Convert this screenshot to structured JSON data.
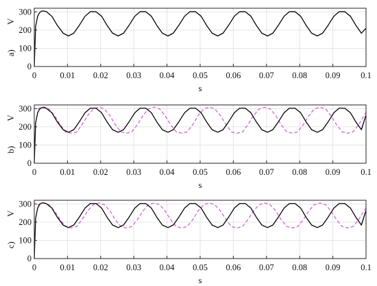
{
  "chart_data": [
    {
      "type": "line",
      "panel_label": "a)",
      "xlabel": "s",
      "ylabel": "V",
      "xlim": [
        0,
        0.1
      ],
      "ylim": [
        0,
        320
      ],
      "x_ticks": [
        "0",
        "0.01",
        "0.02",
        "0.03",
        "0.04",
        "0.05",
        "0.06",
        "0.07",
        "0.08",
        "0.09",
        "0.1"
      ],
      "y_ticks": [
        "0",
        "100",
        "200",
        "300"
      ],
      "grid": true,
      "series": [
        {
          "color": "#000000",
          "style": "solid",
          "x": [
            0,
            0.0004,
            0.001,
            0.0016,
            0.0022,
            0.0027,
            0.0036,
            0.0053,
            0.0069,
            0.0087,
            0.0103,
            0.0119,
            0.0136,
            0.0153,
            0.0169,
            0.0186,
            0.0203,
            0.0219,
            0.0236,
            0.0253,
            0.0269,
            0.0286,
            0.0303,
            0.0319,
            0.0336,
            0.0353,
            0.0369,
            0.0386,
            0.0403,
            0.0419,
            0.0436,
            0.0453,
            0.0469,
            0.0486,
            0.0503,
            0.0519,
            0.0536,
            0.0553,
            0.0569,
            0.0586,
            0.0603,
            0.0619,
            0.0636,
            0.0653,
            0.0669,
            0.0686,
            0.0703,
            0.0719,
            0.0736,
            0.0753,
            0.0769,
            0.0786,
            0.0803,
            0.0819,
            0.0836,
            0.0853,
            0.0869,
            0.0886,
            0.0903,
            0.0919,
            0.0936,
            0.0953,
            0.0969,
            0.0986,
            0.1
          ],
          "y": [
            0,
            220,
            275,
            296,
            304,
            305,
            302,
            276,
            227,
            183,
            168,
            183,
            227,
            276,
            301,
            301,
            276,
            227,
            183,
            168,
            183,
            227,
            276,
            301,
            301,
            276,
            227,
            183,
            168,
            183,
            227,
            276,
            301,
            301,
            276,
            227,
            183,
            168,
            183,
            227,
            276,
            301,
            301,
            276,
            227,
            183,
            168,
            183,
            227,
            276,
            301,
            301,
            276,
            227,
            183,
            168,
            183,
            227,
            276,
            301,
            301,
            276,
            227,
            183,
            210
          ]
        }
      ]
    },
    {
      "type": "line",
      "panel_label": "b)",
      "xlabel": "s",
      "ylabel": "V",
      "xlim": [
        0,
        0.1
      ],
      "ylim": [
        0,
        320
      ],
      "x_ticks": [
        "0",
        "0.01",
        "0.02",
        "0.03",
        "0.04",
        "0.05",
        "0.06",
        "0.07",
        "0.08",
        "0.09",
        "0.1"
      ],
      "y_ticks": [
        "0",
        "100",
        "200",
        "300"
      ],
      "grid": true,
      "series": [
        {
          "color": "#000000",
          "style": "solid",
          "x": [
            0,
            0.0004,
            0.001,
            0.0016,
            0.0022,
            0.0027,
            0.0036,
            0.0053,
            0.0069,
            0.0087,
            0.0103,
            0.0119,
            0.0136,
            0.0153,
            0.0169,
            0.0186,
            0.0203,
            0.0219,
            0.0236,
            0.0253,
            0.0269,
            0.0286,
            0.0303,
            0.0319,
            0.0336,
            0.0353,
            0.0369,
            0.0386,
            0.0403,
            0.0419,
            0.0436,
            0.0453,
            0.0469,
            0.0486,
            0.0503,
            0.0519,
            0.0536,
            0.0553,
            0.0569,
            0.0586,
            0.0603,
            0.0619,
            0.0636,
            0.0653,
            0.0669,
            0.0686,
            0.0703,
            0.0719,
            0.0736,
            0.0753,
            0.0769,
            0.0786,
            0.0803,
            0.0819,
            0.0836,
            0.0853,
            0.0869,
            0.0886,
            0.0903,
            0.0919,
            0.0936,
            0.0953,
            0.0969,
            0.0986,
            0.1
          ],
          "y": [
            0,
            220,
            276,
            297,
            305,
            306,
            302,
            277,
            228,
            184,
            170,
            184,
            228,
            277,
            302,
            302,
            277,
            228,
            184,
            170,
            184,
            228,
            277,
            302,
            302,
            277,
            228,
            184,
            170,
            184,
            228,
            277,
            302,
            302,
            277,
            228,
            184,
            170,
            184,
            228,
            277,
            302,
            302,
            277,
            228,
            184,
            170,
            184,
            228,
            277,
            302,
            302,
            277,
            228,
            184,
            170,
            184,
            228,
            277,
            302,
            302,
            277,
            228,
            184,
            265
          ]
        },
        {
          "color": "#d860d8",
          "style": "dashed",
          "x": [
            0.001,
            0.0016,
            0.0022,
            0.0029,
            0.0044,
            0.0061,
            0.0078,
            0.0094,
            0.0111,
            0.0128,
            0.0144,
            0.0161,
            0.0178,
            0.0194,
            0.0211,
            0.0228,
            0.0244,
            0.0261,
            0.0278,
            0.0294,
            0.0311,
            0.0328,
            0.0344,
            0.0361,
            0.0378,
            0.0394,
            0.0411,
            0.0428,
            0.0444,
            0.0461,
            0.0478,
            0.0494,
            0.0511,
            0.0528,
            0.0544,
            0.0561,
            0.0578,
            0.0594,
            0.0611,
            0.0628,
            0.0644,
            0.0661,
            0.0678,
            0.0694,
            0.0711,
            0.0728,
            0.0744,
            0.0761,
            0.0778,
            0.0794,
            0.0811,
            0.0828,
            0.0844,
            0.0861,
            0.0878,
            0.0894,
            0.0911,
            0.0928,
            0.0944,
            0.0961,
            0.0978,
            0.0994,
            0.1
          ],
          "y": [
            296,
            304,
            308,
            309,
            298,
            262,
            212,
            172,
            165,
            172,
            212,
            262,
            298,
            308,
            298,
            262,
            212,
            172,
            165,
            172,
            212,
            262,
            298,
            308,
            298,
            262,
            212,
            172,
            165,
            172,
            212,
            262,
            298,
            308,
            298,
            262,
            212,
            172,
            165,
            172,
            212,
            262,
            298,
            308,
            298,
            262,
            212,
            172,
            165,
            172,
            212,
            262,
            298,
            308,
            298,
            262,
            212,
            172,
            165,
            172,
            212,
            262,
            280
          ]
        }
      ]
    },
    {
      "type": "line",
      "panel_label": "c)",
      "xlabel": "s",
      "ylabel": "V",
      "xlim": [
        0,
        0.1
      ],
      "ylim": [
        0,
        320
      ],
      "x_ticks": [
        "0",
        "0.01",
        "0.02",
        "0.03",
        "0.04",
        "0.05",
        "0.06",
        "0.07",
        "0.08",
        "0.09",
        "0.1"
      ],
      "y_ticks": [
        "0",
        "100",
        "200",
        "300"
      ],
      "grid": true,
      "series": [
        {
          "color": "#000000",
          "style": "solid",
          "x": [
            0,
            0.0004,
            0.001,
            0.0016,
            0.0022,
            0.0027,
            0.0036,
            0.0053,
            0.0069,
            0.0087,
            0.0103,
            0.0119,
            0.0136,
            0.0153,
            0.0169,
            0.0186,
            0.0203,
            0.0219,
            0.0236,
            0.0253,
            0.0269,
            0.0286,
            0.0303,
            0.0319,
            0.0336,
            0.0353,
            0.0369,
            0.0386,
            0.0403,
            0.0419,
            0.0436,
            0.0453,
            0.0469,
            0.0486,
            0.0503,
            0.0519,
            0.0536,
            0.0553,
            0.0569,
            0.0586,
            0.0603,
            0.0619,
            0.0636,
            0.0653,
            0.0669,
            0.0686,
            0.0703,
            0.0719,
            0.0736,
            0.0753,
            0.0769,
            0.0786,
            0.0803,
            0.0819,
            0.0836,
            0.0853,
            0.0869,
            0.0886,
            0.0903,
            0.0919,
            0.0936,
            0.0953,
            0.0969,
            0.0986,
            0.1
          ],
          "y": [
            0,
            220,
            276,
            297,
            305,
            306,
            302,
            277,
            228,
            184,
            170,
            184,
            228,
            277,
            302,
            302,
            277,
            228,
            184,
            170,
            184,
            228,
            277,
            302,
            302,
            277,
            228,
            184,
            170,
            184,
            228,
            277,
            302,
            302,
            277,
            228,
            184,
            170,
            184,
            228,
            277,
            302,
            302,
            277,
            228,
            184,
            170,
            184,
            228,
            277,
            302,
            302,
            277,
            228,
            184,
            170,
            184,
            228,
            277,
            302,
            302,
            277,
            228,
            184,
            265
          ]
        },
        {
          "color": "#d860d8",
          "style": "dashed",
          "x": [
            0.001,
            0.0016,
            0.0022,
            0.0029,
            0.0044,
            0.0061,
            0.0078,
            0.0094,
            0.0111,
            0.0128,
            0.0144,
            0.0161,
            0.0178,
            0.0194,
            0.0211,
            0.0228,
            0.0244,
            0.0261,
            0.0278,
            0.0294,
            0.0311,
            0.0328,
            0.0344,
            0.0361,
            0.0378,
            0.0394,
            0.0411,
            0.0428,
            0.0444,
            0.0461,
            0.0478,
            0.0494,
            0.0511,
            0.0528,
            0.0544,
            0.0561,
            0.0578,
            0.0594,
            0.0611,
            0.0628,
            0.0644,
            0.0661,
            0.0678,
            0.0694,
            0.0711,
            0.0728,
            0.0744,
            0.0761,
            0.0778,
            0.0794,
            0.0811,
            0.0828,
            0.0844,
            0.0861,
            0.0878,
            0.0894,
            0.0911,
            0.0928,
            0.0944,
            0.0961,
            0.0978,
            0.0994,
            0.1
          ],
          "y": [
            292,
            300,
            304,
            305,
            296,
            262,
            214,
            176,
            168,
            176,
            214,
            262,
            296,
            305,
            296,
            262,
            214,
            176,
            168,
            176,
            214,
            262,
            296,
            305,
            296,
            262,
            214,
            176,
            168,
            176,
            214,
            262,
            296,
            305,
            296,
            262,
            214,
            176,
            168,
            176,
            214,
            262,
            296,
            305,
            296,
            262,
            214,
            176,
            168,
            176,
            214,
            262,
            296,
            305,
            296,
            262,
            214,
            176,
            168,
            176,
            214,
            262,
            278
          ]
        }
      ]
    }
  ]
}
